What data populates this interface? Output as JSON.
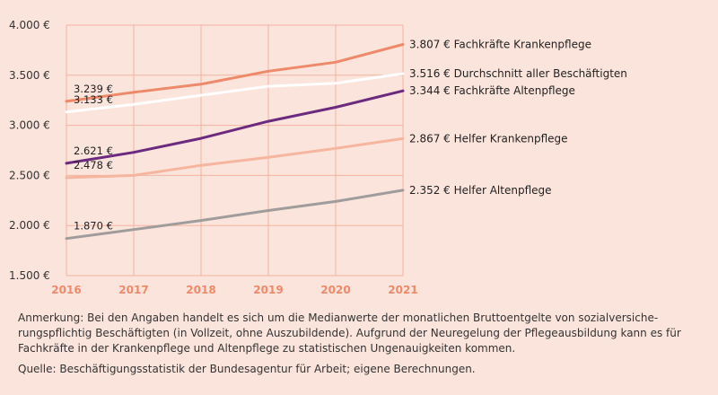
{
  "chart_data": {
    "type": "line",
    "x": [
      2016,
      2017,
      2018,
      2019,
      2020,
      2021
    ],
    "ylim": [
      1500,
      4000
    ],
    "yticks": [
      1500,
      2000,
      2500,
      3000,
      3500,
      4000
    ],
    "ytick_labels": [
      "1.500 €",
      "2.000 €",
      "2.500 €",
      "3.000 €",
      "3.500 €",
      "4.000 €"
    ],
    "xtick_labels": [
      "2016",
      "2017",
      "2018",
      "2019",
      "2020",
      "2021"
    ],
    "grid": true,
    "series": [
      {
        "name": "Fachkräfte Krankenpflege",
        "color": "#ee8a6a",
        "values": [
          3239,
          3330,
          3410,
          3540,
          3630,
          3807
        ],
        "start_label": "3.239 €",
        "end_label": "3.807 € Fachkräfte Krankenpflege"
      },
      {
        "name": "Durchschnitt aller Beschäftigten",
        "color": "#ffffff",
        "values": [
          3133,
          3210,
          3300,
          3390,
          3420,
          3516
        ],
        "start_label": "3.133 €",
        "end_label": "3.516 € Durchschnitt aller Beschäftigten"
      },
      {
        "name": "Fachkräfte Altenpflege",
        "color": "#6b2a7e",
        "values": [
          2621,
          2730,
          2870,
          3040,
          3180,
          3344
        ],
        "start_label": "2.621 €",
        "end_label": "3.344 € Fachkräfte Altenpflege"
      },
      {
        "name": "Helfer Krankenpflege",
        "color": "#f6b59e",
        "values": [
          2478,
          2500,
          2600,
          2680,
          2770,
          2867
        ],
        "start_label": "2.478 €",
        "end_label": "2.867 € Helfer Krankenpflege"
      },
      {
        "name": "Helfer Altenpflege",
        "color": "#a09c9b",
        "values": [
          1870,
          1960,
          2050,
          2150,
          2240,
          2352
        ],
        "start_label": "1.870 €",
        "end_label": "2.352 € Helfer Altenpflege"
      }
    ]
  },
  "notes": {
    "annotation": "Anmerkung: Bei den Angaben handelt es sich um die Medianwerte der monatlichen Bruttoentgelte von sozialversiche-rungspflichtig Beschäftigten (in Vollzeit, ohne Auszubildende). Aufgrund der Neuregelung der Pflegeausbildung kann es für Fachkräfte in der Krankenpflege und Altenpflege zu statistischen Ungenauigkeiten kommen.",
    "source": "Quelle: Beschäftigungsstatistik der Bundesagentur für Arbeit; eigene Berechnungen."
  }
}
